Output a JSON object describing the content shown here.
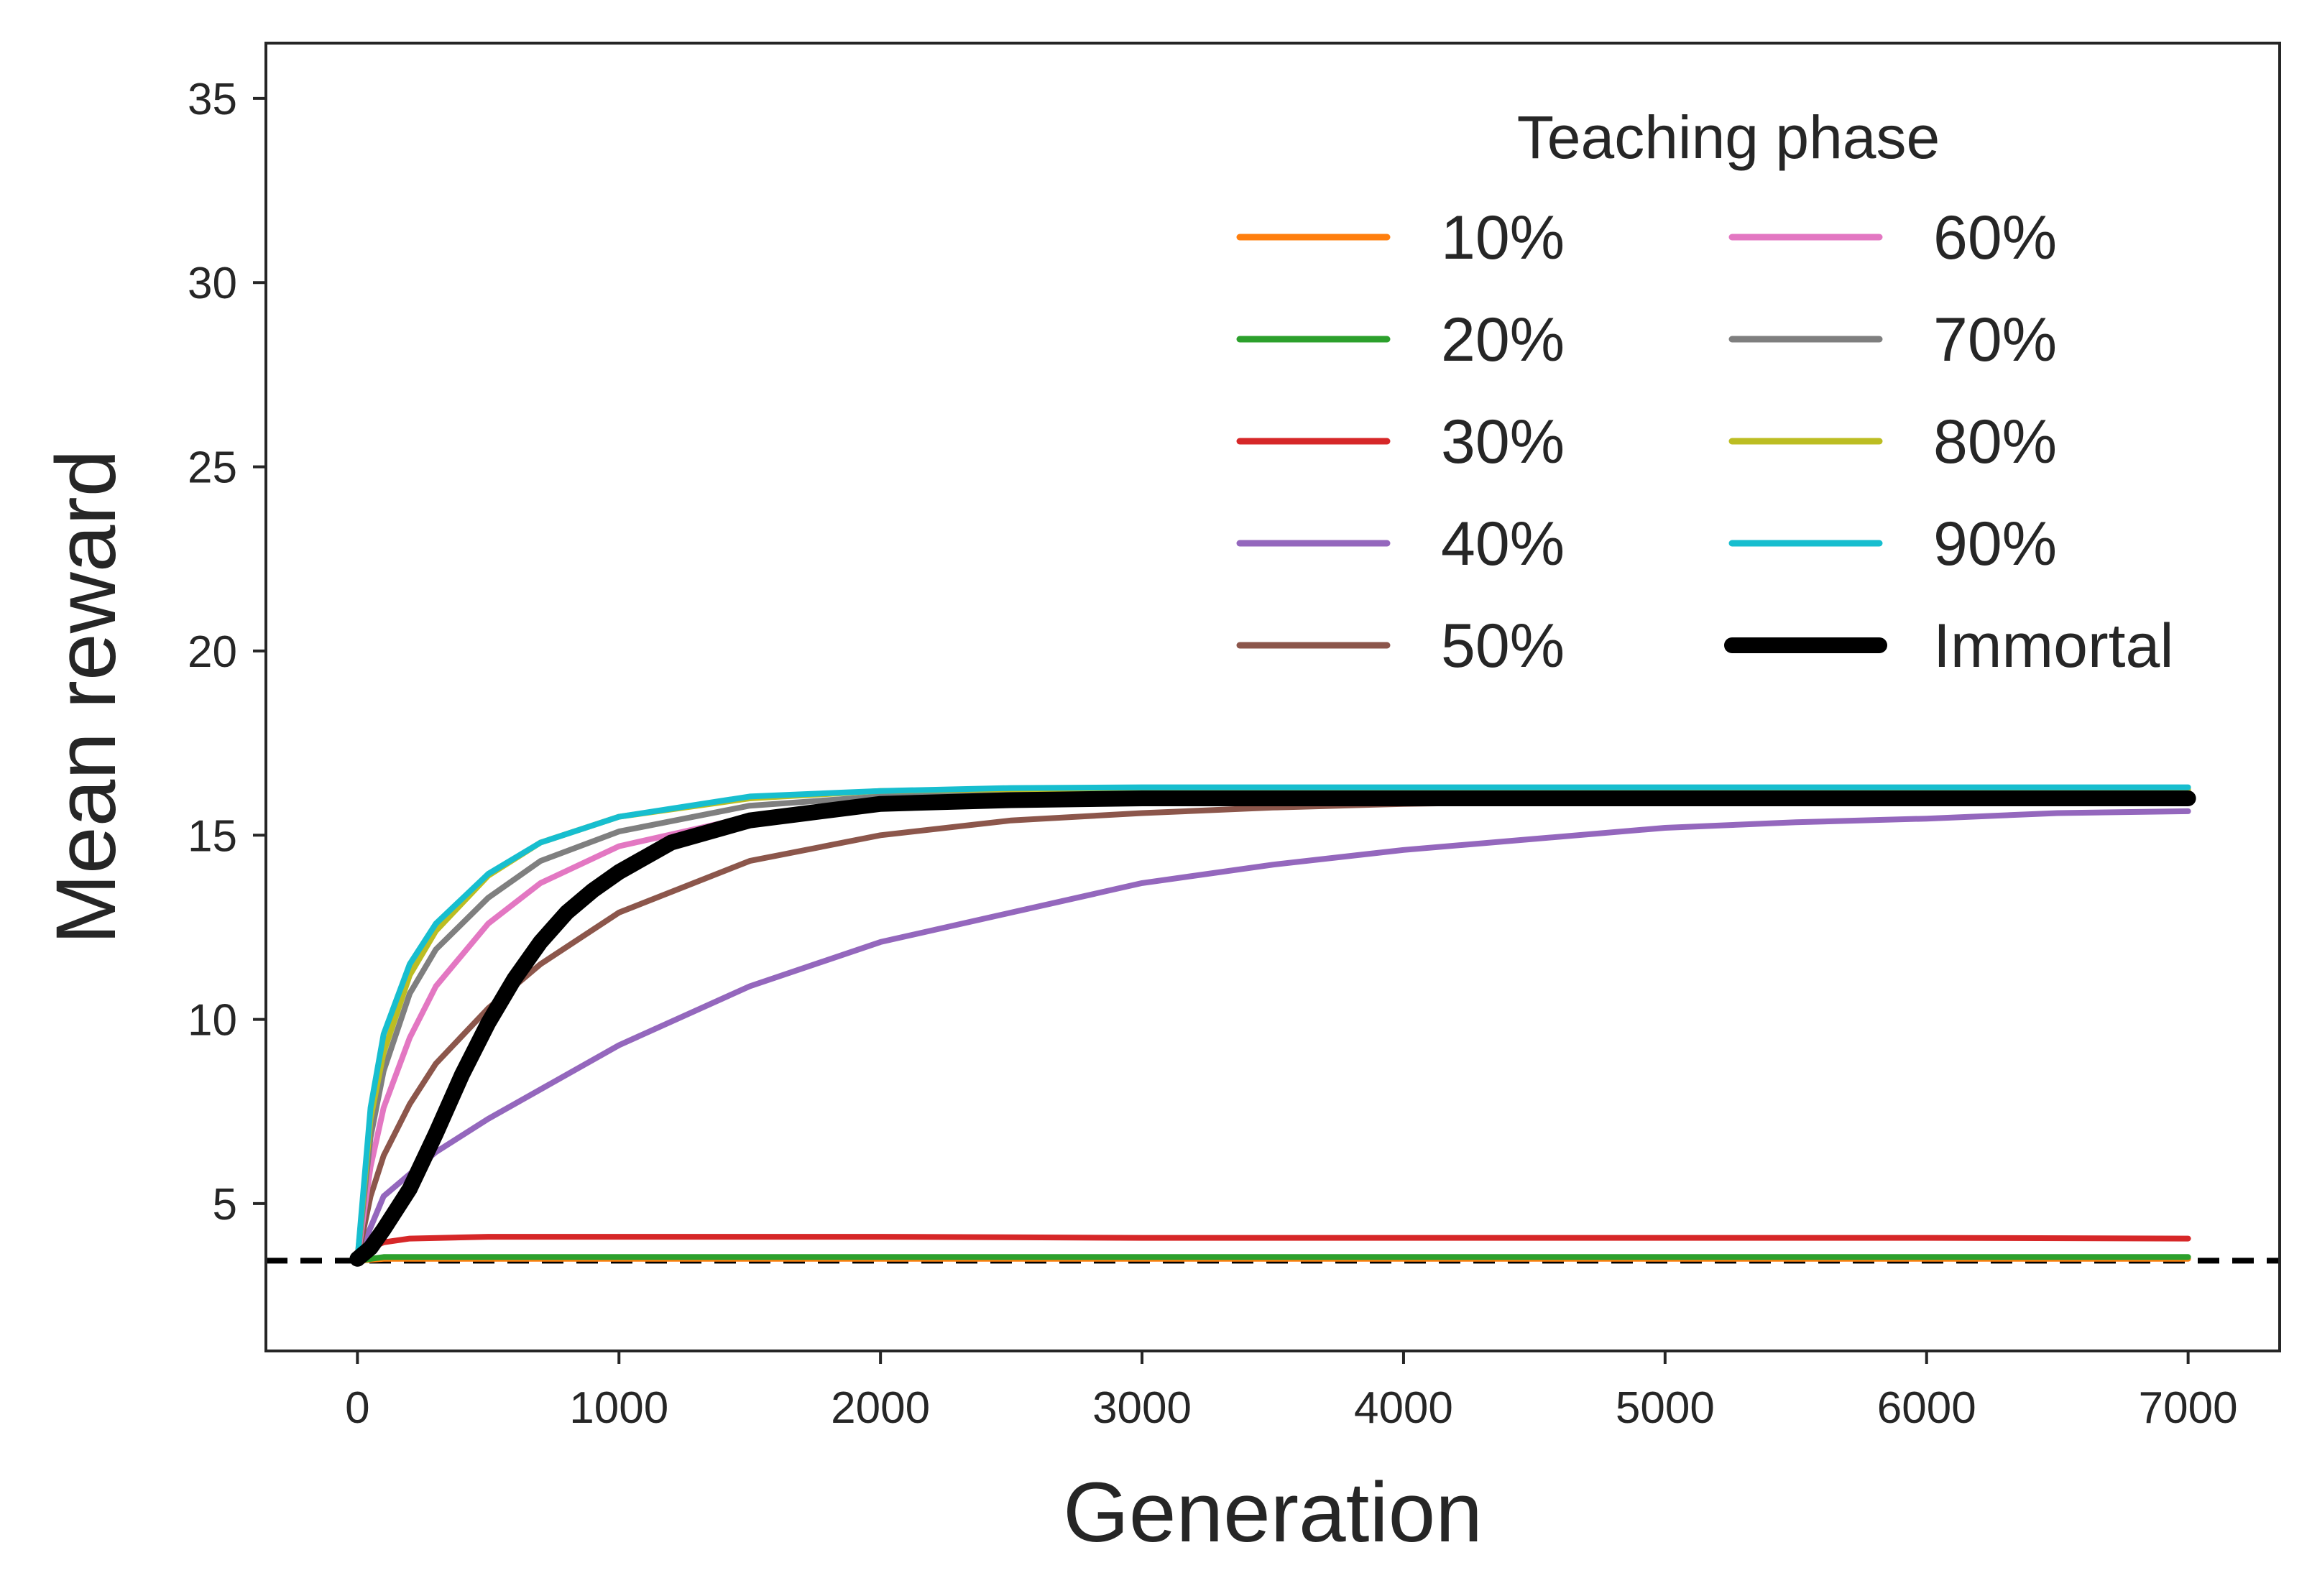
{
  "chart_data": {
    "type": "line",
    "xlabel": "Generation",
    "ylabel": "Mean reward",
    "xlim": [
      -350,
      7350
    ],
    "ylim": [
      1,
      36.5
    ],
    "xticks": [
      0,
      1000,
      2000,
      3000,
      4000,
      5000,
      6000,
      7000
    ],
    "yticks": [
      5,
      10,
      15,
      20,
      25,
      30,
      35
    ],
    "grid": false,
    "legend": {
      "title": "Teaching phase",
      "placement": "top-right",
      "columns": 2
    },
    "baseline": {
      "y": 3.45,
      "style": "dashed",
      "color": "#000000"
    },
    "series": [
      {
        "name": "10%",
        "color": "#ff7f0e",
        "x": [
          0,
          100,
          500,
          1000,
          2000,
          3000,
          4000,
          5000,
          6000,
          7000
        ],
        "y": [
          3.45,
          3.5,
          3.5,
          3.5,
          3.5,
          3.5,
          3.5,
          3.5,
          3.5,
          3.5
        ]
      },
      {
        "name": "20%",
        "color": "#2ca02c",
        "x": [
          0,
          100,
          500,
          1000,
          2000,
          3000,
          4000,
          5000,
          6000,
          7000
        ],
        "y": [
          3.45,
          3.55,
          3.55,
          3.55,
          3.55,
          3.55,
          3.55,
          3.55,
          3.55,
          3.55
        ]
      },
      {
        "name": "30%",
        "color": "#d62728",
        "x": [
          0,
          50,
          100,
          200,
          500,
          1000,
          2000,
          3000,
          4000,
          5000,
          6000,
          7000
        ],
        "y": [
          3.5,
          3.8,
          3.95,
          4.05,
          4.1,
          4.1,
          4.1,
          4.07,
          4.07,
          4.07,
          4.07,
          4.05
        ]
      },
      {
        "name": "40%",
        "color": "#9467bd",
        "x": [
          0,
          100,
          200,
          300,
          500,
          700,
          1000,
          1500,
          2000,
          2500,
          3000,
          3500,
          4000,
          4500,
          5000,
          5500,
          6000,
          6500,
          7000
        ],
        "y": [
          3.5,
          5.2,
          5.8,
          6.4,
          7.3,
          8.1,
          9.3,
          10.9,
          12.1,
          12.9,
          13.7,
          14.2,
          14.6,
          14.9,
          15.2,
          15.35,
          15.45,
          15.6,
          15.65
        ]
      },
      {
        "name": "50%",
        "color": "#8c564b",
        "x": [
          0,
          50,
          100,
          200,
          300,
          500,
          700,
          1000,
          1500,
          2000,
          2500,
          3000,
          3500,
          4000,
          5000,
          6000,
          7000
        ],
        "y": [
          3.5,
          5.2,
          6.3,
          7.7,
          8.8,
          10.3,
          11.5,
          12.9,
          14.3,
          15.0,
          15.4,
          15.6,
          15.75,
          15.85,
          15.95,
          16.0,
          16.0
        ]
      },
      {
        "name": "60%",
        "color": "#e377c2",
        "x": [
          0,
          50,
          100,
          200,
          300,
          500,
          700,
          1000,
          1500,
          2000,
          2500,
          3000,
          4000,
          5000,
          6000,
          7000
        ],
        "y": [
          3.5,
          6.0,
          7.6,
          9.5,
          10.9,
          12.6,
          13.7,
          14.7,
          15.5,
          15.85,
          16.0,
          16.05,
          16.1,
          16.1,
          16.1,
          16.1
        ]
      },
      {
        "name": "70%",
        "color": "#7f7f7f",
        "x": [
          0,
          50,
          100,
          200,
          300,
          500,
          700,
          1000,
          1500,
          2000,
          2500,
          3000,
          4000,
          5000,
          6000,
          7000
        ],
        "y": [
          3.5,
          6.8,
          8.6,
          10.7,
          11.9,
          13.3,
          14.3,
          15.1,
          15.8,
          16.05,
          16.15,
          16.2,
          16.2,
          16.2,
          16.2,
          16.2
        ]
      },
      {
        "name": "80%",
        "color": "#bcbd22",
        "x": [
          0,
          50,
          100,
          200,
          300,
          500,
          700,
          1000,
          1500,
          2000,
          2500,
          3000,
          4000,
          5000,
          6000,
          7000
        ],
        "y": [
          3.5,
          7.3,
          9.1,
          11.2,
          12.4,
          13.9,
          14.8,
          15.5,
          16.0,
          16.2,
          16.25,
          16.25,
          16.25,
          16.25,
          16.25,
          16.25
        ]
      },
      {
        "name": "90%",
        "color": "#17becf",
        "x": [
          0,
          50,
          100,
          200,
          300,
          500,
          700,
          1000,
          1500,
          2000,
          2500,
          3000,
          4000,
          5000,
          6000,
          7000
        ],
        "y": [
          3.5,
          7.6,
          9.6,
          11.5,
          12.6,
          13.95,
          14.8,
          15.5,
          16.05,
          16.2,
          16.28,
          16.3,
          16.3,
          16.3,
          16.3,
          16.3
        ]
      },
      {
        "name": "Immortal",
        "color": "#000000",
        "x": [
          0,
          50,
          100,
          200,
          300,
          400,
          500,
          600,
          700,
          800,
          900,
          1000,
          1200,
          1500,
          2000,
          2500,
          3000,
          4000,
          5000,
          6000,
          7000
        ],
        "y": [
          3.5,
          3.8,
          4.3,
          5.4,
          6.9,
          8.5,
          9.9,
          11.1,
          12.1,
          12.9,
          13.5,
          14.0,
          14.8,
          15.4,
          15.85,
          15.95,
          16.0,
          16.0,
          16.0,
          16.0,
          16.0
        ]
      }
    ]
  }
}
